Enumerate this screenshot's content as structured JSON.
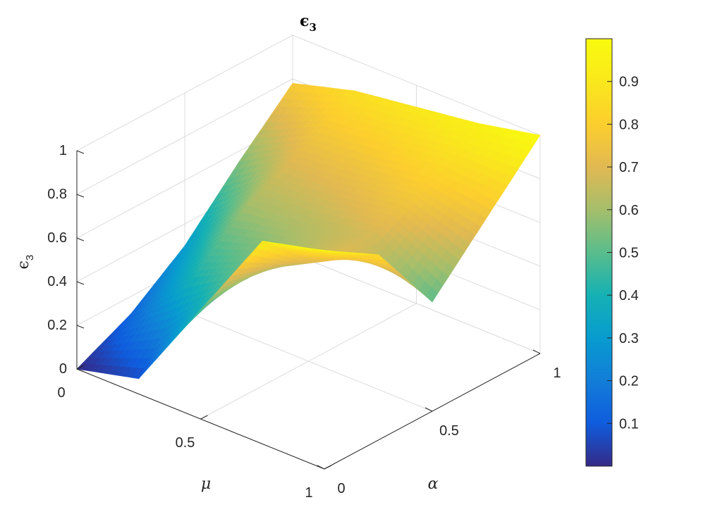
{
  "chart_data": {
    "type": "surface",
    "title": "ϵ₃",
    "title_parts": {
      "symbol": "ϵ",
      "subscript": "3"
    },
    "xlabel": "μ",
    "ylabel": "α",
    "zlabel": "ϵ₃",
    "zlabel_parts": {
      "symbol": "ϵ",
      "subscript": "3"
    },
    "xlim": [
      0,
      1
    ],
    "ylim": [
      0,
      1
    ],
    "zlim": [
      0,
      1
    ],
    "x_ticks": [
      0,
      0.5,
      1
    ],
    "x_tick_labels": [
      "0",
      "0.5",
      "1"
    ],
    "y_ticks": [
      0,
      0.5,
      1
    ],
    "y_tick_labels": [
      "0",
      "0.5",
      "1"
    ],
    "z_ticks": [
      0,
      0.2,
      0.4,
      0.6,
      0.8,
      1
    ],
    "z_tick_labels": [
      "0",
      "0.2",
      "0.4",
      "0.6",
      "0.8",
      "1"
    ],
    "grid": true,
    "colormap": "parula",
    "colorbar": {
      "placement": "right",
      "ticks": [
        0.1,
        0.2,
        0.3,
        0.4,
        0.5,
        0.6,
        0.7,
        0.8,
        0.9
      ],
      "tick_labels": [
        "0.1",
        "0.2",
        "0.3",
        "0.4",
        "0.5",
        "0.6",
        "0.7",
        "0.8",
        "0.9"
      ],
      "range": [
        0,
        1
      ]
    },
    "surface_samples": {
      "mu": [
        0,
        0.25,
        0.5,
        0.75,
        1
      ],
      "alpha": [
        0,
        0.25,
        0.5,
        0.75,
        1
      ],
      "z": [
        [
          0.0,
          0.12,
          0.3,
          0.55,
          0.78
        ],
        [
          0.07,
          0.4,
          0.6,
          0.72,
          0.86
        ],
        [
          0.5,
          0.55,
          0.63,
          0.75,
          0.9
        ],
        [
          0.93,
          0.7,
          0.68,
          0.8,
          0.94
        ],
        [
          1.0,
          0.85,
          0.5,
          0.75,
          1.0
        ]
      ]
    }
  }
}
